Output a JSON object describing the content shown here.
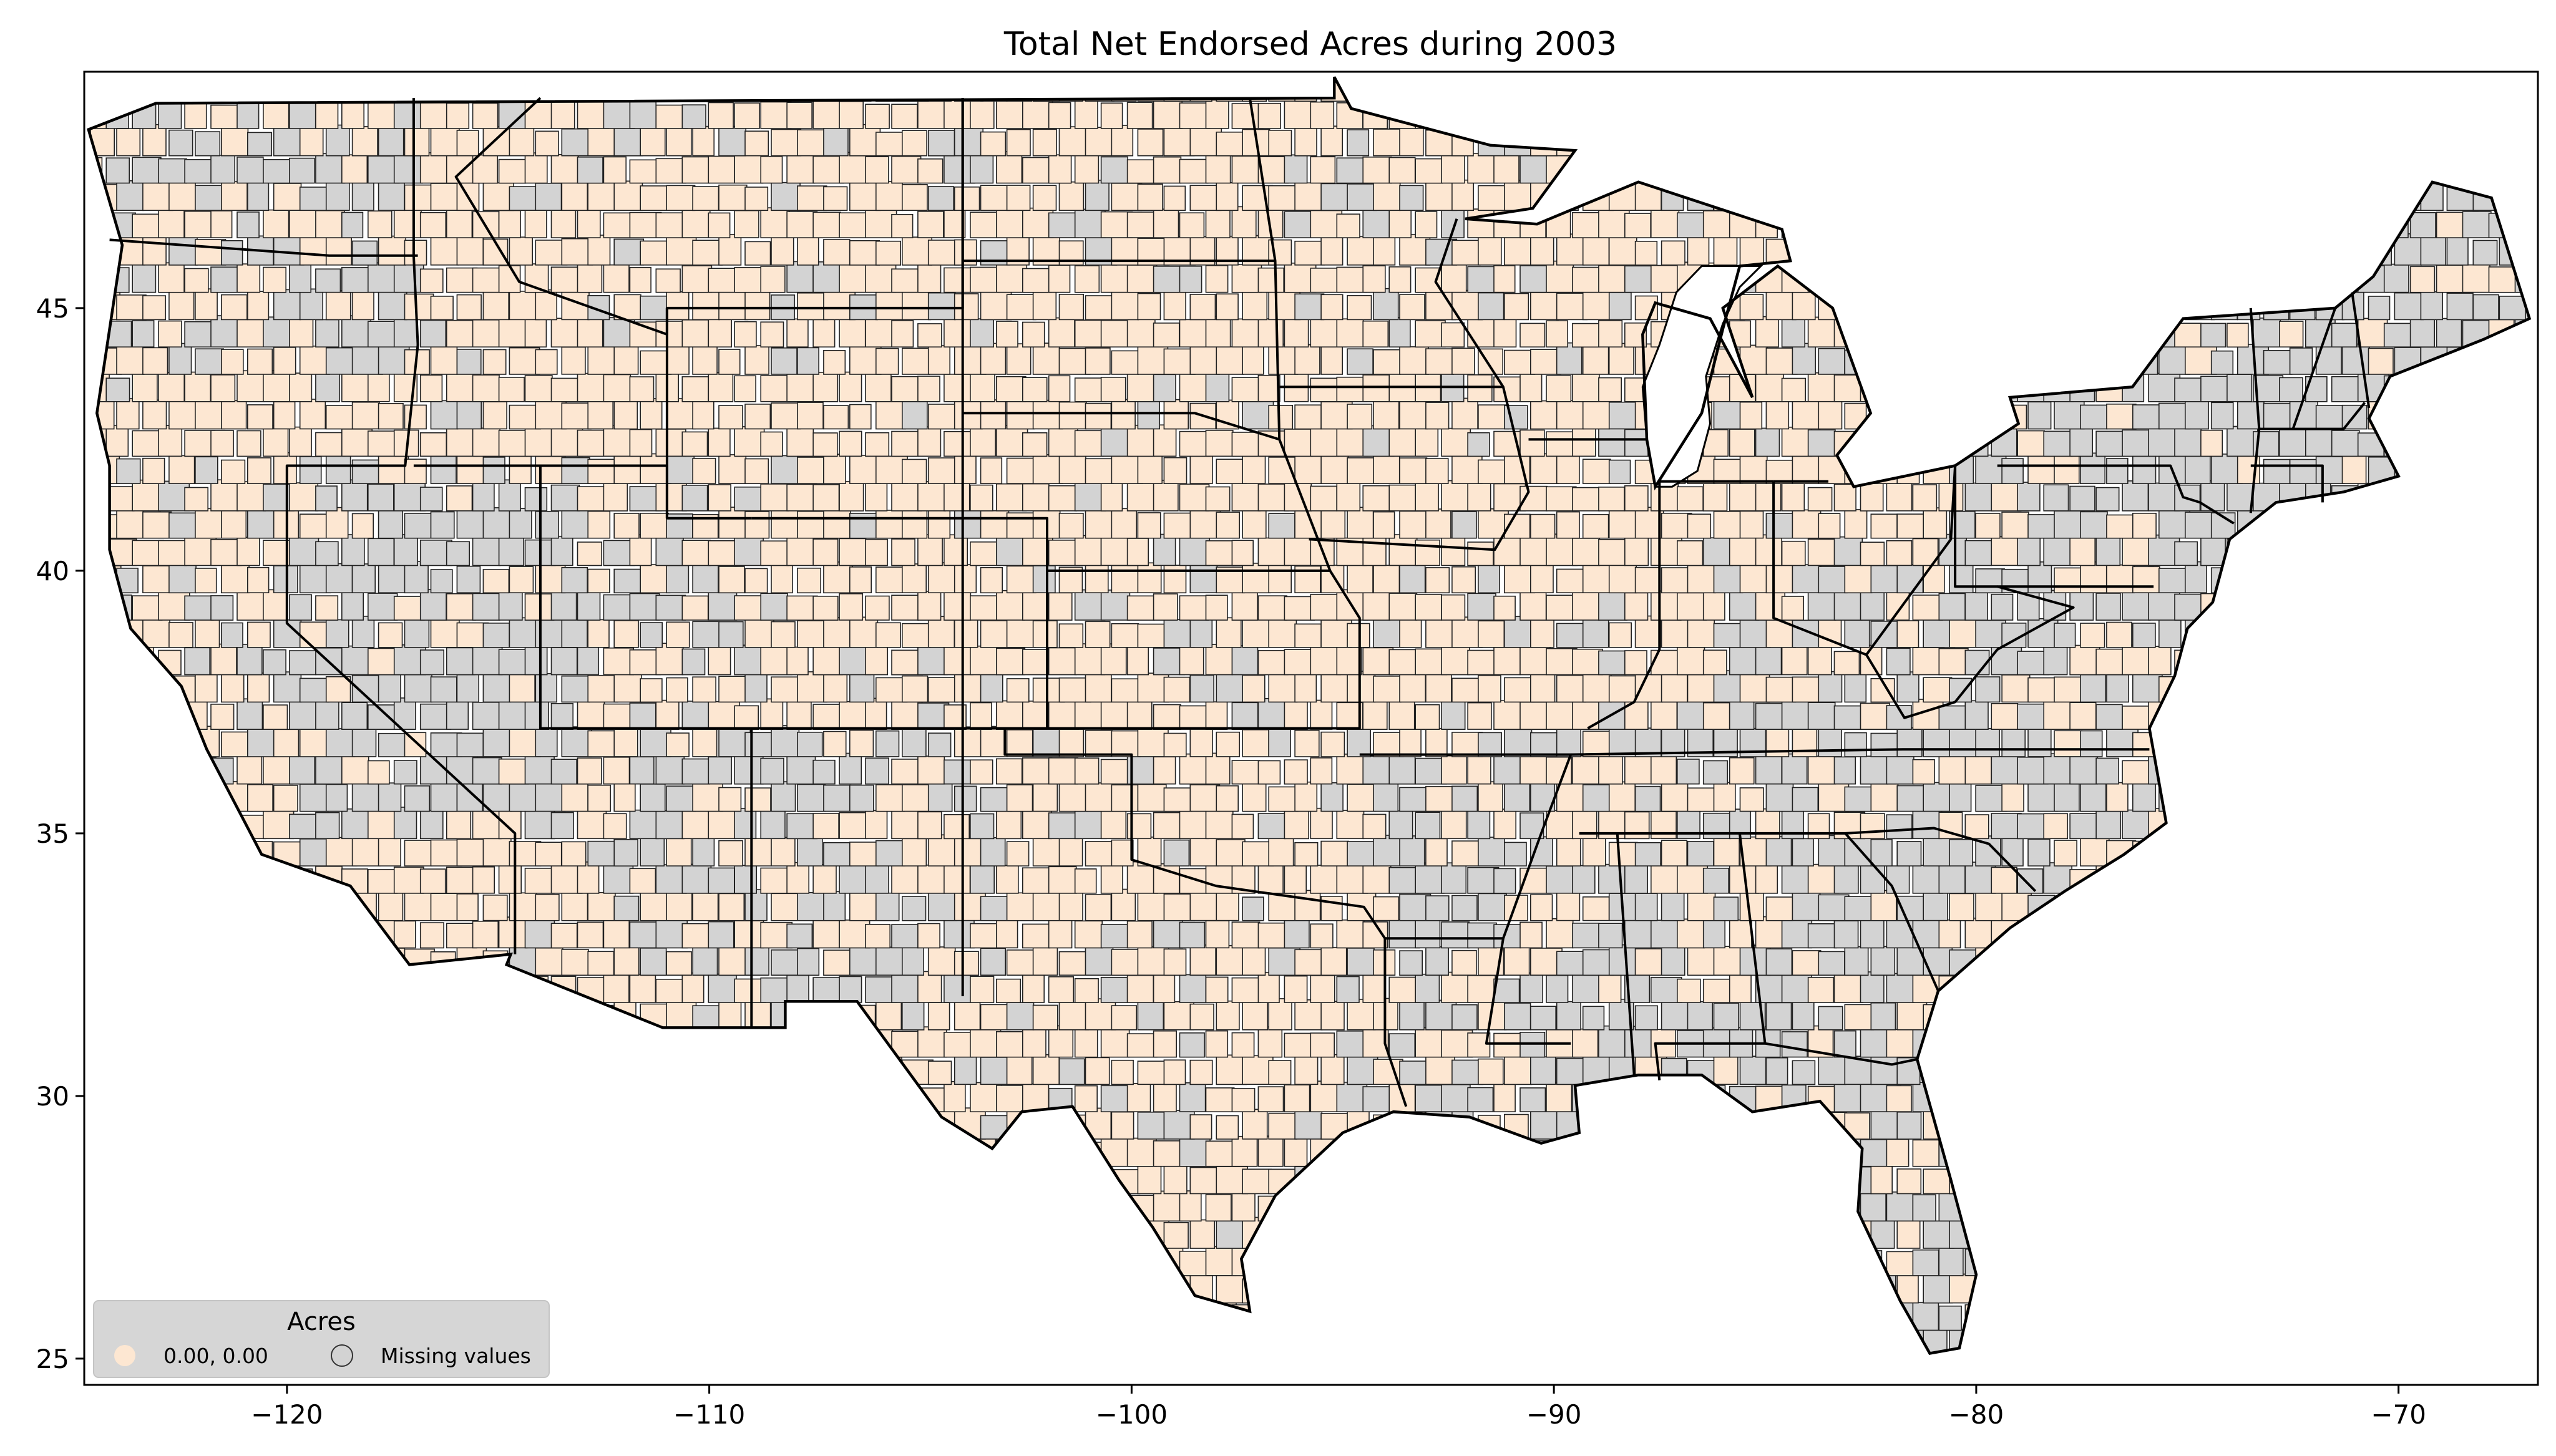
{
  "title": "Total Net Endorsed Acres during 2003",
  "colors": {
    "zero_fill": "#fde7d2",
    "missing_fill": "#d3d3d3",
    "county_border": "#222222",
    "state_border": "#000000",
    "background": "#ffffff"
  },
  "axes": {
    "x_ticks": [
      {
        "value": -120,
        "label": "−120"
      },
      {
        "value": -110,
        "label": "−110"
      },
      {
        "value": -100,
        "label": "−100"
      },
      {
        "value": -90,
        "label": "−90"
      },
      {
        "value": -80,
        "label": "−80"
      },
      {
        "value": -70,
        "label": "−70"
      }
    ],
    "y_ticks": [
      {
        "value": 25,
        "label": "25"
      },
      {
        "value": 30,
        "label": "30"
      },
      {
        "value": 35,
        "label": "35"
      },
      {
        "value": 40,
        "label": "40"
      },
      {
        "value": 45,
        "label": "45"
      }
    ],
    "xlim": [
      -124.8,
      -66.7
    ],
    "ylim": [
      24.5,
      49.5
    ]
  },
  "legend": {
    "title": "Acres",
    "placement": "lower-left",
    "items": [
      {
        "label": "0.00, 0.00",
        "kind": "zero"
      },
      {
        "label": "Missing values",
        "kind": "missing"
      }
    ]
  },
  "chart_data": {
    "type": "choropleth",
    "title": "Total Net Endorsed Acres during 2003",
    "xlabel": "",
    "ylabel": "",
    "xlim": [
      -124.8,
      -66.7
    ],
    "ylim": [
      24.5,
      49.5
    ],
    "grid": false,
    "legend_placement": "lower-left",
    "classes": [
      {
        "label": "0.00, 0.00",
        "range": [
          0.0,
          0.0
        ],
        "color": "#fde7d2"
      },
      {
        "label": "Missing values",
        "color": "#d3d3d3"
      }
    ]
  }
}
